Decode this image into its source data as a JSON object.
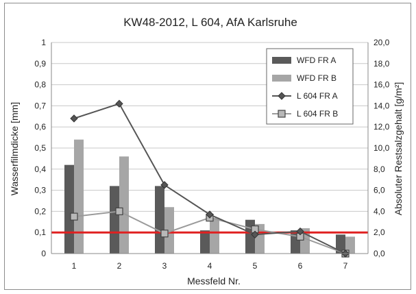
{
  "chart_data": {
    "type": "bar",
    "title": "KW48-2012, L 604, AfA Karlsruhe",
    "xlabel": "Messfeld Nr.",
    "ylabel": "Wasserfilmdicke [mm]",
    "y2label": "Absoluter Restsalzgehalt [g/m²]",
    "categories": [
      "1",
      "2",
      "3",
      "4",
      "5",
      "6",
      "7"
    ],
    "ylim": [
      0,
      1
    ],
    "y2lim": [
      0,
      20
    ],
    "yticks": [
      "0",
      "0,1",
      "0,2",
      "0,3",
      "0,4",
      "0,5",
      "0,6",
      "0,7",
      "0,8",
      "0,9",
      "1"
    ],
    "y2ticks": [
      "0,0",
      "2,0",
      "4,0",
      "6,0",
      "8,0",
      "10,0",
      "12,0",
      "14,0",
      "16,0",
      "18,0",
      "20,0"
    ],
    "grid": true,
    "legend_position": "top-right",
    "reference_line": {
      "axis": "y",
      "value": 0.1,
      "color": "#e02020"
    },
    "series": [
      {
        "name": "WFD FR A",
        "kind": "bar",
        "axis": "left",
        "color": "#5a5a5a",
        "values": [
          0.42,
          0.32,
          0.32,
          0.11,
          0.16,
          0.11,
          0.09
        ]
      },
      {
        "name": "WFD FR B",
        "kind": "bar",
        "axis": "left",
        "color": "#a6a6a6",
        "values": [
          0.54,
          0.46,
          0.22,
          0.17,
          0.14,
          0.12,
          0.08
        ]
      },
      {
        "name": "L 604 FR A",
        "kind": "line",
        "axis": "right",
        "color": "#555555",
        "marker": "diamond",
        "values": [
          12.8,
          14.2,
          6.5,
          3.7,
          1.8,
          2.1,
          0.0
        ]
      },
      {
        "name": "L 604 FR B",
        "kind": "line",
        "axis": "right",
        "color": "#9a9a9a",
        "marker": "square",
        "values": [
          3.5,
          4.0,
          1.9,
          3.4,
          2.3,
          1.6,
          0.0
        ]
      }
    ]
  }
}
